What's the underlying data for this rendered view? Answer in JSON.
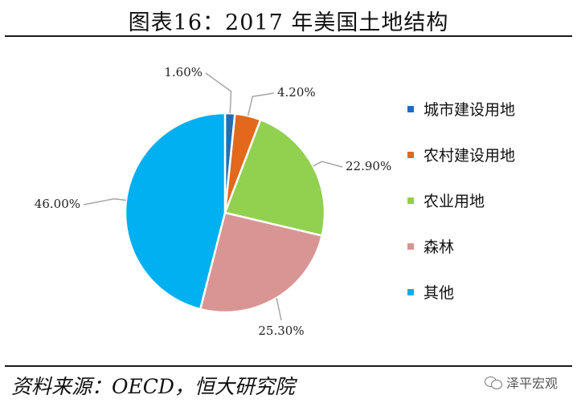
{
  "header": {
    "title": "图表16：2017 年美国土地结构"
  },
  "footer": {
    "source": "资料来源：OECD，恒大研究院",
    "watermark": "泽平宏观"
  },
  "colors": {
    "城市建设用地": "#1f6fb6",
    "农村建设用地": "#e2691b",
    "农业用地": "#92d050",
    "森林": "#d99594",
    "其他": "#00b0f0"
  },
  "chart_data": {
    "type": "pie",
    "title": "图表16：2017 年美国土地结构",
    "categories": [
      "城市建设用地",
      "农村建设用地",
      "农业用地",
      "森林",
      "其他"
    ],
    "values": [
      1.6,
      4.2,
      22.9,
      25.3,
      46.0
    ],
    "labels": [
      "1.60%",
      "4.20%",
      "22.90%",
      "25.30%",
      "46.00%"
    ],
    "unit": "%",
    "legend_position": "right"
  }
}
